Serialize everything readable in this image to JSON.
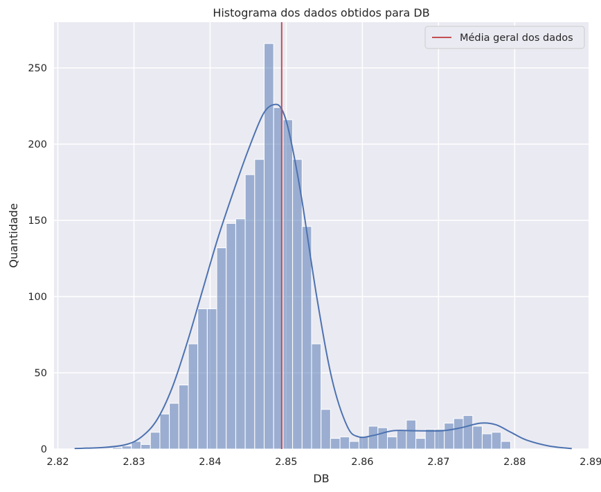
{
  "chart_data": {
    "type": "bar",
    "title": "Histograma dos dados obtidos para DB",
    "xlabel": "DB",
    "ylabel": "Quantidade",
    "xlim": [
      2.8195,
      2.8897
    ],
    "ylim": [
      0,
      280
    ],
    "xticks": [
      "2.82",
      "2.83",
      "2.84",
      "2.85",
      "2.86",
      "2.87",
      "2.88",
      "2.89"
    ],
    "yticks": [
      "0",
      "50",
      "100",
      "150",
      "200",
      "250"
    ],
    "grid": true,
    "legend_position": "top-right",
    "bin_width": 0.001245,
    "bin_start": 2.8222,
    "counts": [
      1,
      0,
      0,
      0,
      1,
      2,
      5,
      3,
      11,
      23,
      30,
      42,
      69,
      92,
      92,
      132,
      148,
      151,
      180,
      190,
      266,
      224,
      216,
      190,
      146,
      69,
      26,
      7,
      8,
      5,
      8,
      15,
      14,
      8,
      12,
      19,
      7,
      13,
      13,
      17,
      20,
      22,
      15,
      10,
      11,
      5
    ],
    "kde": {
      "name": "",
      "x": [
        2.8222,
        2.826,
        2.829,
        2.831,
        2.833,
        2.835,
        2.837,
        2.839,
        2.841,
        2.843,
        2.845,
        2.847,
        2.8485,
        2.8495,
        2.8505,
        2.852,
        2.854,
        2.856,
        2.858,
        2.8595,
        2.8615,
        2.864,
        2.867,
        2.8705,
        2.873,
        2.8755,
        2.8775,
        2.8795,
        2.8815,
        2.8845,
        2.8875
      ],
      "y": [
        0.4,
        1,
        3,
        8,
        19,
        40,
        70,
        104,
        138,
        168,
        196,
        220,
        226,
        222,
        205,
        165,
        100,
        46,
        15,
        8,
        9,
        12,
        12,
        12,
        14,
        17,
        16,
        11,
        6,
        2,
        0.3
      ]
    },
    "mean_line": {
      "name": "Média geral dos dados",
      "x": 2.8494,
      "color": "#c44e52"
    },
    "colors": {
      "bar_fill": "#4c72b0",
      "kde_line": "#4c72b0",
      "mean_line": "#c44e52",
      "plot_background": "#eaeaf2",
      "grid": "#ffffff"
    }
  }
}
